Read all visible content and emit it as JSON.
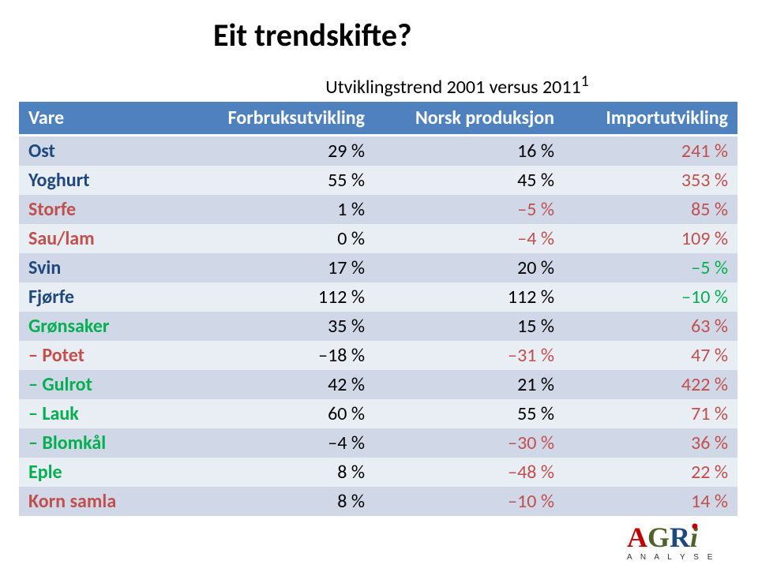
{
  "title": "Eit trendskifte?",
  "super_header": "Utviklingstrend 2001 versus 2011",
  "super_header_sup": "1",
  "columns": [
    "Vare",
    "Forbruksutvikling",
    "Norsk produksjon",
    "Importutvikling"
  ],
  "header_bg": "#4e81bd",
  "header_fg": "#ffffff",
  "band_a_bg": "#d0d8e8",
  "band_b_bg": "#e9edf4",
  "label_colors": {
    "dark": "#1f497d",
    "red": "#c0504d",
    "green": "#00b050"
  },
  "value_colors": {
    "black": "#000000",
    "red": "#c0504d",
    "green": "#00b050"
  },
  "rows": [
    {
      "label": "Ost",
      "label_color": "dark",
      "v1": "29 %",
      "c1": "black",
      "v2": "16 %",
      "c2": "black",
      "v3": "241 %",
      "c3": "red"
    },
    {
      "label": "Yoghurt",
      "label_color": "dark",
      "v1": "55 %",
      "c1": "black",
      "v2": "45 %",
      "c2": "black",
      "v3": "353 %",
      "c3": "red"
    },
    {
      "label": "Storfe",
      "label_color": "red",
      "v1": "1 %",
      "c1": "black",
      "v2": "–5 %",
      "c2": "red",
      "v3": "85 %",
      "c3": "red"
    },
    {
      "label": "Sau/lam",
      "label_color": "red",
      "v1": "0 %",
      "c1": "black",
      "v2": "–4 %",
      "c2": "red",
      "v3": "109 %",
      "c3": "red"
    },
    {
      "label": "Svin",
      "label_color": "dark",
      "v1": "17 %",
      "c1": "black",
      "v2": "20 %",
      "c2": "black",
      "v3": "–5 %",
      "c3": "green"
    },
    {
      "label": "Fjørfe",
      "label_color": "dark",
      "v1": "112 %",
      "c1": "black",
      "v2": "112 %",
      "c2": "black",
      "v3": "–10 %",
      "c3": "green"
    },
    {
      "label": "Grønsaker",
      "label_color": "green",
      "v1": "35 %",
      "c1": "black",
      "v2": "15 %",
      "c2": "black",
      "v3": "63 %",
      "c3": "red"
    },
    {
      "label": "– Potet",
      "label_color": "red",
      "v1": "–18 %",
      "c1": "black",
      "v2": "–31 %",
      "c2": "red",
      "v3": "47 %",
      "c3": "red"
    },
    {
      "label": "– Gulrot",
      "label_color": "green",
      "v1": "42 %",
      "c1": "black",
      "v2": "21 %",
      "c2": "black",
      "v3": "422 %",
      "c3": "red"
    },
    {
      "label": "– Lauk",
      "label_color": "green",
      "v1": "60 %",
      "c1": "black",
      "v2": "55 %",
      "c2": "black",
      "v3": "71 %",
      "c3": "red"
    },
    {
      "label": "– Blomkål",
      "label_color": "green",
      "v1": "–4 %",
      "c1": "black",
      "v2": "–30 %",
      "c2": "red",
      "v3": "36 %",
      "c3": "red"
    },
    {
      "label": "Eple",
      "label_color": "green",
      "v1": "8 %",
      "c1": "black",
      "v2": "–48 %",
      "c2": "red",
      "v3": "22 %",
      "c3": "red"
    },
    {
      "label": "Korn samla",
      "label_color": "red",
      "v1": "8 %",
      "c1": "black",
      "v2": "–10 %",
      "c2": "red",
      "v3": "14 %",
      "c3": "red"
    }
  ],
  "logo": {
    "text_main": "AGRi",
    "text_sub": "A N A L Y S E",
    "colors": {
      "A": "#c00000",
      "G": "#4f6228",
      "R": "#1f497d",
      "i": "#4f6228",
      "dot": "#c00000",
      "sub": "#333333"
    }
  }
}
